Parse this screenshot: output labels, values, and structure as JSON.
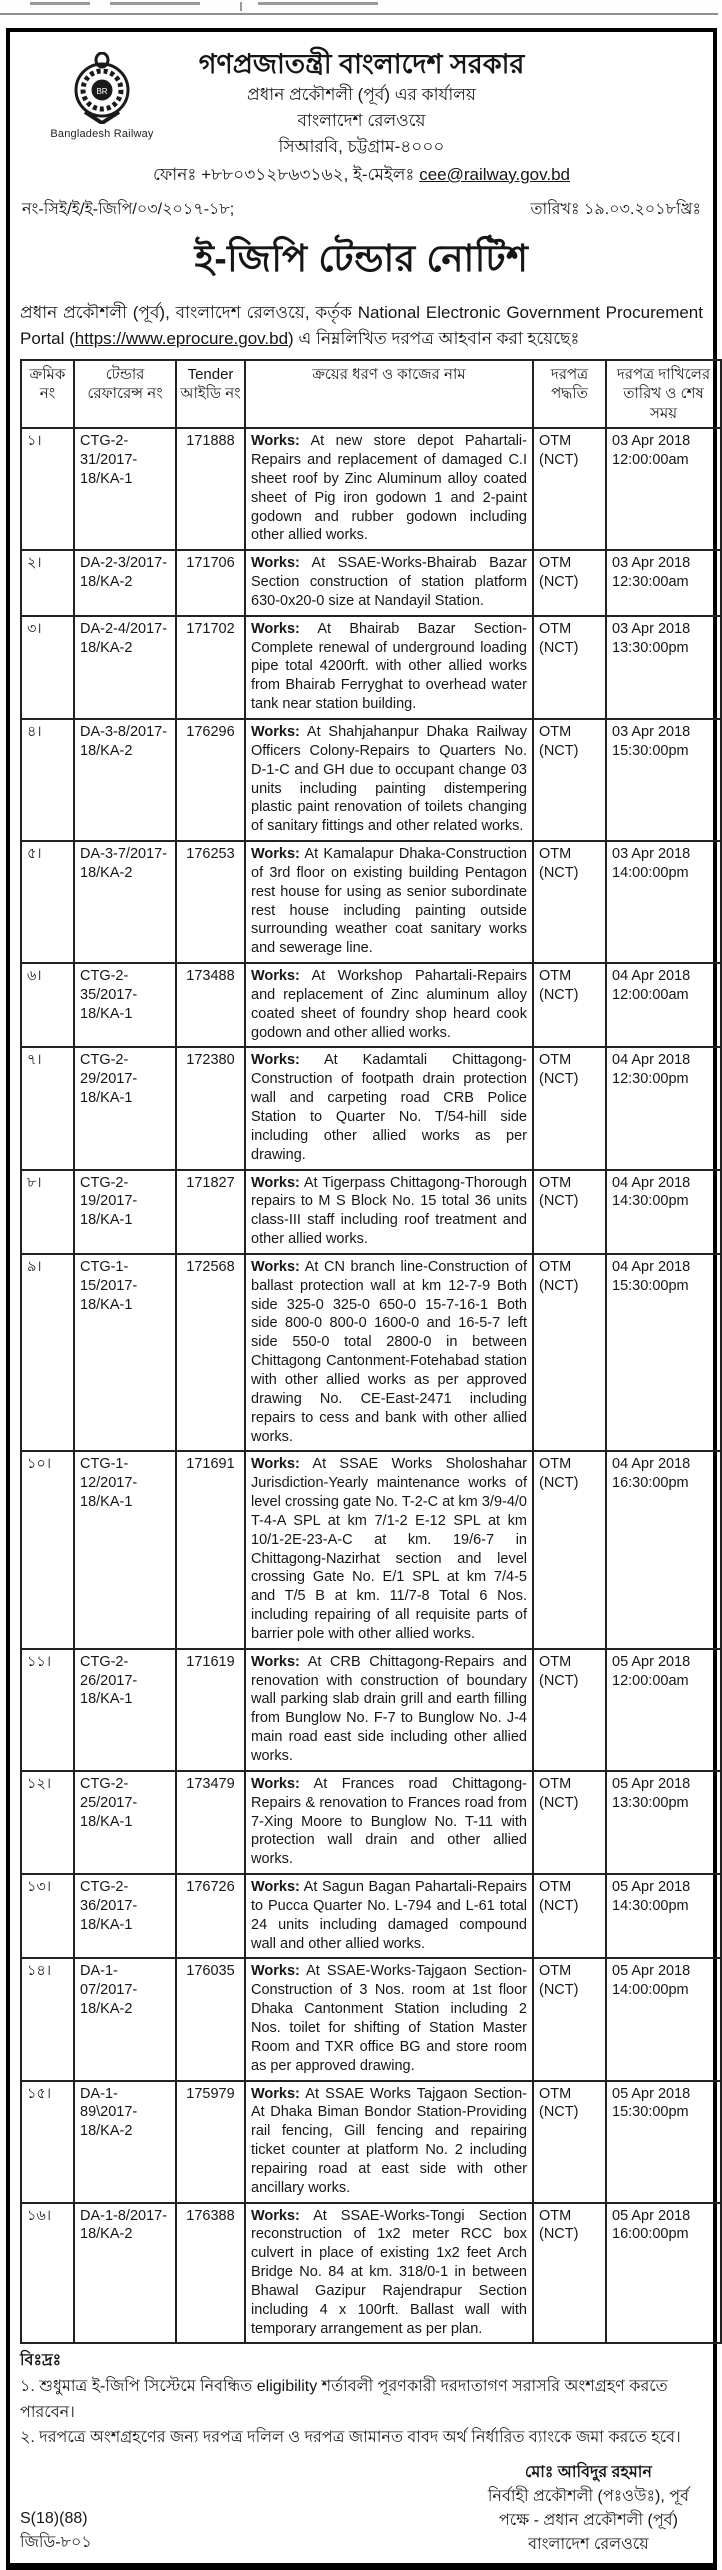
{
  "header": {
    "logo_caption": "Bangladesh Railway",
    "govt_title": "গণপ্রজাতন্ত্রী বাংলাদেশ সরকার",
    "office_line1": "প্রধান প্রকৌশলী (পূর্ব) এর কার্যালয়",
    "office_line2": "বাংলাদেশ রেলওয়ে",
    "office_line3": "সিআরবি, চট্টগ্রাম-৪০০০",
    "contact_prefix": "ফোনঃ +৮৮০৩১২৮৬৩১৬২, ই-মেইলঃ ",
    "email": "cee@railway.gov.bd",
    "memo_no": "নং-সিই/ই/ই-জিপি/০৩/২০১৭-১৮;",
    "date": "তারিখঃ ১৯.০৩.২০১৮খ্রিঃ",
    "notice_title": "ই-জিপি টেন্ডার নোটিশ",
    "intro_before": "প্রধান প্রকৌশলী (পূর্ব), বাংলাদেশ রেলওয়ে, কর্তৃক National Electronic Government Procurement Portal (",
    "intro_link": "https://www.eprocure.gov.bd",
    "intro_after": ") এ নিম্নলিখিত দরপত্র আহবান করা হয়েছেঃ"
  },
  "table": {
    "headers": [
      "ক্রমিক নং",
      "টেন্ডার রেফারেন্স নং",
      "Tender আইডি নং",
      "ক্রয়ের ধরণ ও কাজের নাম",
      "দরপত্র পদ্ধতি",
      "দরপত্র দাখিলের তারিখ ও শেষ সময়"
    ],
    "works_label": "Works:",
    "rows": [
      {
        "serial": "১।",
        "ref": "CTG-2-31/2017-18/KA-1",
        "tender_id": "171888",
        "works": "At new store depot Pahartali-Repairs and replacement of damaged C.I sheet roof by Zinc Aluminum alloy coated sheet of Pig iron godown 1 and 2-paint godown and rubber godown including other allied works.",
        "method": "OTM (NCT)",
        "date": "03 Apr 2018",
        "time": "12:00:00am"
      },
      {
        "serial": "২।",
        "ref": "DA-2-3/2017-18/KA-2",
        "tender_id": "171706",
        "works": "At SSAE-Works-Bhairab Bazar Section construction of station platform 630-0x20-0 size at Nandayil Station.",
        "method": "OTM (NCT)",
        "date": "03 Apr 2018",
        "time": "12:30:00am"
      },
      {
        "serial": "৩।",
        "ref": "DA-2-4/2017-18/KA-2",
        "tender_id": "171702",
        "works": "At Bhairab Bazar Section-Complete renewal of underground loading pipe total 4200rft. with other allied works from Bhairab Ferryghat to overhead water tank near station building.",
        "method": "OTM (NCT)",
        "date": "03 Apr 2018",
        "time": "13:30:00pm"
      },
      {
        "serial": "৪।",
        "ref": "DA-3-8/2017-18/KA-2",
        "tender_id": "176296",
        "works": "At Shahjahanpur Dhaka Railway Officers Colony-Repairs to Quarters No. D-1-C and GH due to occupant change 03 units including painting distempering plastic paint renovation of toilets changing of sanitary fittings and other related works.",
        "method": "OTM (NCT)",
        "date": "03 Apr 2018",
        "time": "15:30:00pm"
      },
      {
        "serial": "৫।",
        "ref": "DA-3-7/2017-18/KA-2",
        "tender_id": "176253",
        "works": "At Kamalapur Dhaka-Construction of 3rd floor on existing building Pentagon rest house for using as senior subordinate rest house including painting outside surrounding weather coat sanitary works and sewerage line.",
        "method": "OTM (NCT)",
        "date": "03 Apr 2018",
        "time": "14:00:00pm"
      },
      {
        "serial": "৬।",
        "ref": "CTG-2-35/2017-18/KA-1",
        "tender_id": "173488",
        "works": "At Workshop Pahartali-Repairs and replacement of Zinc aluminum alloy coated sheet of foundry shop heard cook godown and other allied works.",
        "method": "OTM (NCT)",
        "date": "04 Apr 2018",
        "time": "12:00:00am"
      },
      {
        "serial": "৭।",
        "ref": "CTG-2-29/2017-18/KA-1",
        "tender_id": "172380",
        "works": "At Kadamtali Chittagong-Construction of footpath drain protection wall and carpeting road CRB Police Station to Quarter No. T/54-hill side including other allied works as per drawing.",
        "method": "OTM (NCT)",
        "date": "04 Apr 2018",
        "time": "12:30:00pm"
      },
      {
        "serial": "৮।",
        "ref": "CTG-2-19/2017-18/KA-1",
        "tender_id": "171827",
        "works": "At Tigerpass Chittagong-Thorough repairs to M S Block No. 15 total 36 units class-III staff including roof treatment and other allied works.",
        "method": "OTM (NCT)",
        "date": "04 Apr 2018",
        "time": "14:30:00pm"
      },
      {
        "serial": "৯।",
        "ref": "CTG-1-15/2017-18/KA-1",
        "tender_id": "172568",
        "works": "At CN branch line-Construction of ballast protection wall at km 12-7-9 Both side 325-0 325-0 650-0 15-7-16-1 Both side 800-0 800-0 1600-0 and 16-5-7 left side 550-0 total 2800-0 in between Chittagong Cantonment-Fotehabad station with other allied works as per approved drawing No. CE-East-2471 including repairs to cess and bank with other allied works.",
        "method": "OTM (NCT)",
        "date": "04 Apr 2018",
        "time": "15:30:00pm"
      },
      {
        "serial": "১০।",
        "ref": "CTG-1-12/2017-18/KA-1",
        "tender_id": "171691",
        "works": "At SSAE Works Sholoshahar Jurisdiction-Yearly maintenance works of level crossing gate No. T-2-C at km 3/9-4/0 T-4-A SPL at km 7/1-2 E-12 SPL at km 10/1-2E-23-A-C at km. 19/6-7 in Chittagong-Nazirhat section and level crossing Gate No. E/1 SPL at km 7/4-5 and T/5 B at km. 11/7-8 Total 6 Nos. including repairing of all requisite parts of barrier pole with other allied works.",
        "method": "OTM (NCT)",
        "date": "04 Apr 2018",
        "time": "16:30:00pm"
      },
      {
        "serial": "১১।",
        "ref": "CTG-2-26/2017-18/KA-1",
        "tender_id": "171619",
        "works": "At CRB Chittagong-Repairs and renovation with construction of boundary wall parking slab drain grill and earth filling from Bunglow No. F-7 to Bunglow No. J-4  main road east side including other allied works.",
        "method": "OTM (NCT)",
        "date": "05 Apr 2018",
        "time": "12:00:00am"
      },
      {
        "serial": "১২।",
        "ref": "CTG-2-25/2017-18/KA-1",
        "tender_id": "173479",
        "works": "At Frances road Chittagong-Repairs & renovation to Frances road from 7-Xing Moore to Bunglow  No. T-11 with protection wall drain and other allied works.",
        "method": "OTM (NCT)",
        "date": "05 Apr 2018",
        "time": "13:30:00pm"
      },
      {
        "serial": "১৩।",
        "ref": "CTG-2-36/2017-18/KA-1",
        "tender_id": "176726",
        "works": "At Sagun Bagan Pahartali-Repairs to Pucca Quarter No. L-794 and L-61 total 24 units including damaged compound wall and other allied works.",
        "method": "OTM (NCT)",
        "date": "05 Apr 2018",
        "time": "14:30:00pm"
      },
      {
        "serial": "১৪।",
        "ref": "DA-1-07/2017-18/KA-2",
        "tender_id": "176035",
        "works": "At SSAE-Works-Tajgaon Section-Construction of 3 Nos. room at 1st floor Dhaka Cantonment Station including 2 Nos. toilet for shifting of Station Master Room and TXR office BG and store room as per approved drawing.",
        "method": "OTM (NCT)",
        "date": "05 Apr 2018",
        "time": "14:00:00pm"
      },
      {
        "serial": "১৫।",
        "ref": "DA-1-89\\2017-18/KA-2",
        "tender_id": "175979",
        "works": "At SSAE Works Tajgaon Section-At Dhaka Biman Bondor Station-Providing rail fencing, Gill fencing and repairing ticket counter at platform No. 2 including repairing road at east side with other ancillary works.",
        "method": "OTM (NCT)",
        "date": "05 Apr 2018",
        "time": "15:30:00pm"
      },
      {
        "serial": "১৬।",
        "ref": "DA-1-8/2017-18/KA-2",
        "tender_id": "176388",
        "works": "At SSAE-Works-Tongi Section reconstruction of 1x2 meter RCC box culvert in place of existing 1x2 feet Arch Bridge No. 84 at km. 318/0-1 in between Bhawal Gazipur Rajendrapur Section including 4 x 100rft. Ballast wall with temporary arrangement as per plan.",
        "method": "OTM (NCT)",
        "date": "05 Apr 2018",
        "time": "16:00:00pm"
      }
    ]
  },
  "notes": {
    "heading": "বিঃদ্রঃ",
    "items": [
      "১. শুধুমাত্র ই-জিপি সিস্টেমে নিবন্ধিত eligibility শর্তাবলী পূরণকারী দরদাতাগণ সরাসরি অংশগ্রহণ করতে পারবেন।",
      "২. দরপত্রে অংশগ্রহণের জন্য দরপত্র দলিল ও দরপত্র জামানত বাবদ অর্থ নির্ধারিত ব্যাংকে জমা করতে হবে।"
    ]
  },
  "signature": {
    "name": "মোঃ আবিদুর রহমান",
    "title_line": "নির্বাহী প্রকৌশলী (পঃওউঃ), পূর্ব",
    "on_behalf_line": "পক্ষে - প্রধান প্রকৌশলী (পূর্ব)",
    "org_line": "বাংলাদেশ রেলওয়ে"
  },
  "footer": {
    "code1": "S(18)(88)",
    "code2": "জিডি-৮০১"
  }
}
